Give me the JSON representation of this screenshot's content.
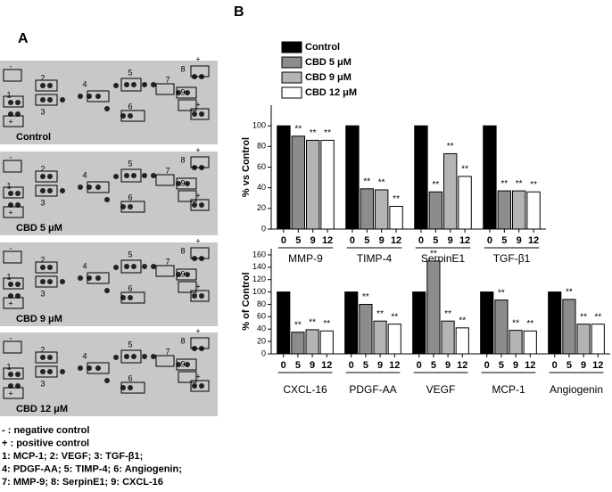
{
  "panels": [
    "A",
    "B"
  ],
  "blots": [
    "Control",
    "CBD 5 μM",
    "CBD 9 μM",
    "CBD 12 μM"
  ],
  "spot_labels": [
    "-",
    "1",
    "+",
    "2",
    "3",
    "4",
    "5",
    "6",
    "7",
    "8",
    "+",
    "9",
    "+"
  ],
  "key": [
    "- : negative control",
    "+ : positive control",
    "1: MCP-1; 2: VEGF; 3: TGF-β1;",
    "4: PDGF-AA; 5: TIMP-4; 6: Angiogenin;",
    "7: MMP-9; 8: SerpinE1; 9: CXCL-16"
  ],
  "chart_data": [
    {
      "type": "bar",
      "ylabel": "% vs Control",
      "groups": [
        "MMP-9",
        "TIMP-4",
        "SerpinE1",
        "TGF-β1"
      ],
      "subcategories": [
        "0",
        "5",
        "9",
        "12"
      ],
      "ylim": [
        0,
        120
      ],
      "yticks": [
        0,
        20,
        40,
        60,
        80,
        100
      ],
      "series": [
        {
          "name": "Control",
          "color": "#000000",
          "values": [
            100,
            100,
            100,
            100
          ],
          "annotations": [
            null,
            null,
            null,
            null
          ]
        },
        {
          "name": "CBD 5 μM",
          "color": "#8c8c8c",
          "values": [
            90,
            39,
            36,
            37
          ],
          "annotations": [
            "**",
            "**",
            "**",
            "**"
          ]
        },
        {
          "name": "CBD 9 μM",
          "color": "#b4b4b4",
          "values": [
            86,
            38,
            73,
            37
          ],
          "annotations": [
            "**",
            "**",
            "**",
            "**"
          ]
        },
        {
          "name": "CBD 12 μM",
          "color": "#ffffff",
          "values": [
            86,
            22,
            51,
            36
          ],
          "annotations": [
            "**",
            "**",
            "**",
            "**"
          ]
        }
      ]
    },
    {
      "type": "bar",
      "ylabel": "% of Control",
      "groups": [
        "CXCL-16",
        "PDGF-AA",
        "VEGF",
        "MCP-1",
        "Angiogenin"
      ],
      "subcategories": [
        "0",
        "5",
        "9",
        "12"
      ],
      "ylim": [
        0,
        170
      ],
      "yticks": [
        0,
        20,
        40,
        60,
        80,
        100,
        120,
        140,
        160
      ],
      "series": [
        {
          "color": "#000000",
          "values": [
            100,
            100,
            100,
            100,
            100
          ],
          "annotations": [
            null,
            null,
            null,
            null,
            null
          ]
        },
        {
          "color": "#8c8c8c",
          "values": [
            35,
            80,
            150,
            87,
            88
          ],
          "annotations": [
            "**",
            "**",
            "**",
            "**",
            "**"
          ]
        },
        {
          "color": "#b4b4b4",
          "values": [
            39,
            53,
            53,
            38,
            48
          ],
          "annotations": [
            "**",
            "**",
            "**",
            "**",
            "**"
          ]
        },
        {
          "color": "#ffffff",
          "values": [
            37,
            48,
            42,
            37,
            48
          ],
          "annotations": [
            "**",
            "**",
            "**",
            "**",
            "**"
          ]
        }
      ]
    }
  ]
}
